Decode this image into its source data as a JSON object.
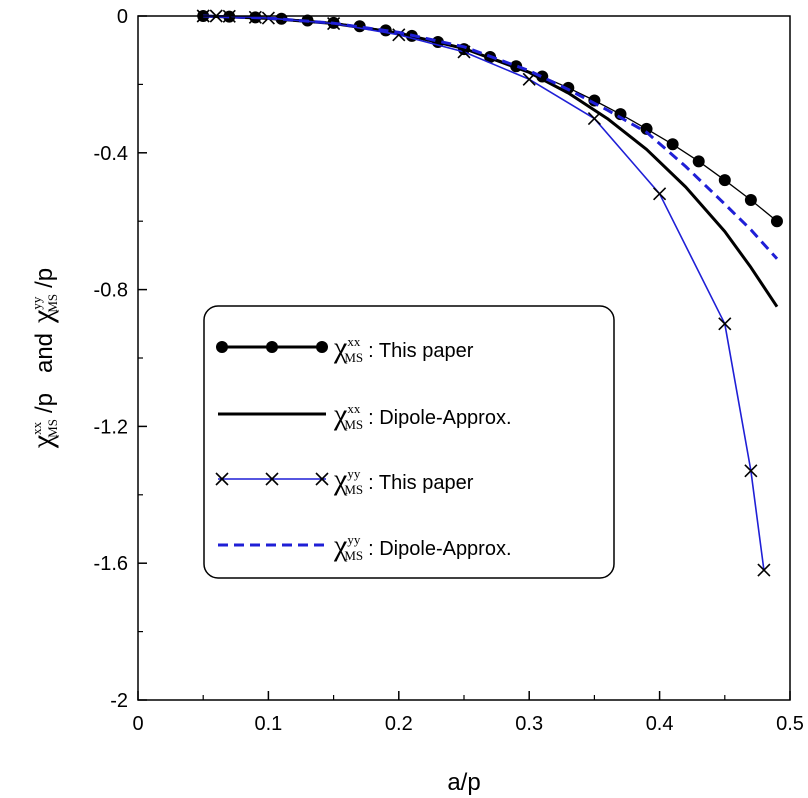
{
  "chart_data": {
    "type": "line",
    "xlabel": "a/p",
    "ylabel": {
      "symbol": "χ",
      "sup1": "xx",
      "sub1": "MS",
      "mid": "/p   and",
      "sup2": "yy",
      "sub2": "MS",
      "end": "/p"
    },
    "xlim": [
      0,
      0.5
    ],
    "ylim": [
      -2,
      0
    ],
    "x_ticks": [
      0,
      0.1,
      0.2,
      0.3,
      0.4,
      0.5
    ],
    "x_tick_labels": [
      "0",
      "0.1",
      "0.2",
      "0.3",
      "0.4",
      "0.5"
    ],
    "y_ticks": [
      0,
      -0.4,
      -0.8,
      -1.2,
      -1.6,
      -2
    ],
    "y_tick_labels": [
      "0",
      "-0.4",
      "-0.8",
      "-1.2",
      "-1.6",
      "-2"
    ],
    "grid": false,
    "legend_position": "center-left",
    "series": [
      {
        "key": "xx_paper",
        "symbol": "χ",
        "sup": "xx",
        "sub": "MS",
        "label": ": This paper",
        "color": "#000000",
        "marker": "circle",
        "dashed": false,
        "x": [
          0.05,
          0.07,
          0.09,
          0.11,
          0.13,
          0.15,
          0.17,
          0.19,
          0.21,
          0.23,
          0.25,
          0.27,
          0.29,
          0.31,
          0.33,
          0.35,
          0.37,
          0.39,
          0.41,
          0.43,
          0.45,
          0.47,
          0.49
        ],
        "y": [
          0,
          -0.002,
          -0.004,
          -0.008,
          -0.013,
          -0.02,
          -0.03,
          -0.042,
          -0.058,
          -0.076,
          -0.097,
          -0.12,
          -0.147,
          -0.177,
          -0.21,
          -0.247,
          -0.287,
          -0.33,
          -0.375,
          -0.425,
          -0.48,
          -0.538,
          -0.6
        ]
      },
      {
        "key": "xx_dipole",
        "symbol": "χ",
        "sup": "xx",
        "sub": "MS",
        "label": ": Dipole-Approx.",
        "color": "#000000",
        "marker": "none",
        "dashed": false,
        "x": [
          0.05,
          0.1,
          0.15,
          0.2,
          0.25,
          0.3,
          0.33,
          0.36,
          0.39,
          0.42,
          0.45,
          0.47,
          0.49
        ],
        "y": [
          0,
          -0.007,
          -0.022,
          -0.05,
          -0.095,
          -0.165,
          -0.225,
          -0.3,
          -0.39,
          -0.5,
          -0.63,
          -0.735,
          -0.85
        ]
      },
      {
        "key": "yy_paper",
        "symbol": "χ",
        "sup": "yy",
        "sub": "MS",
        "label": ": This paper",
        "color": "#1f1fd6",
        "marker": "cross",
        "dashed": false,
        "x": [
          0.05,
          0.06,
          0.07,
          0.09,
          0.1,
          0.15,
          0.2,
          0.25,
          0.3,
          0.35,
          0.4,
          0.45,
          0.47,
          0.48
        ],
        "y": [
          0,
          0,
          -0.001,
          -0.004,
          -0.006,
          -0.022,
          -0.055,
          -0.105,
          -0.185,
          -0.3,
          -0.52,
          -0.9,
          -1.33,
          -1.62
        ]
      },
      {
        "key": "yy_dipole",
        "symbol": "χ",
        "sup": "yy",
        "sub": "MS",
        "label": ": Dipole-Approx.",
        "color": "#1f1fd6",
        "marker": "none",
        "dashed": true,
        "x": [
          0.05,
          0.1,
          0.15,
          0.2,
          0.25,
          0.3,
          0.33,
          0.36,
          0.39,
          0.42,
          0.45,
          0.47,
          0.49
        ],
        "y": [
          0,
          -0.006,
          -0.021,
          -0.048,
          -0.09,
          -0.16,
          -0.215,
          -0.275,
          -0.34,
          -0.44,
          -0.55,
          -0.625,
          -0.71
        ]
      }
    ]
  }
}
